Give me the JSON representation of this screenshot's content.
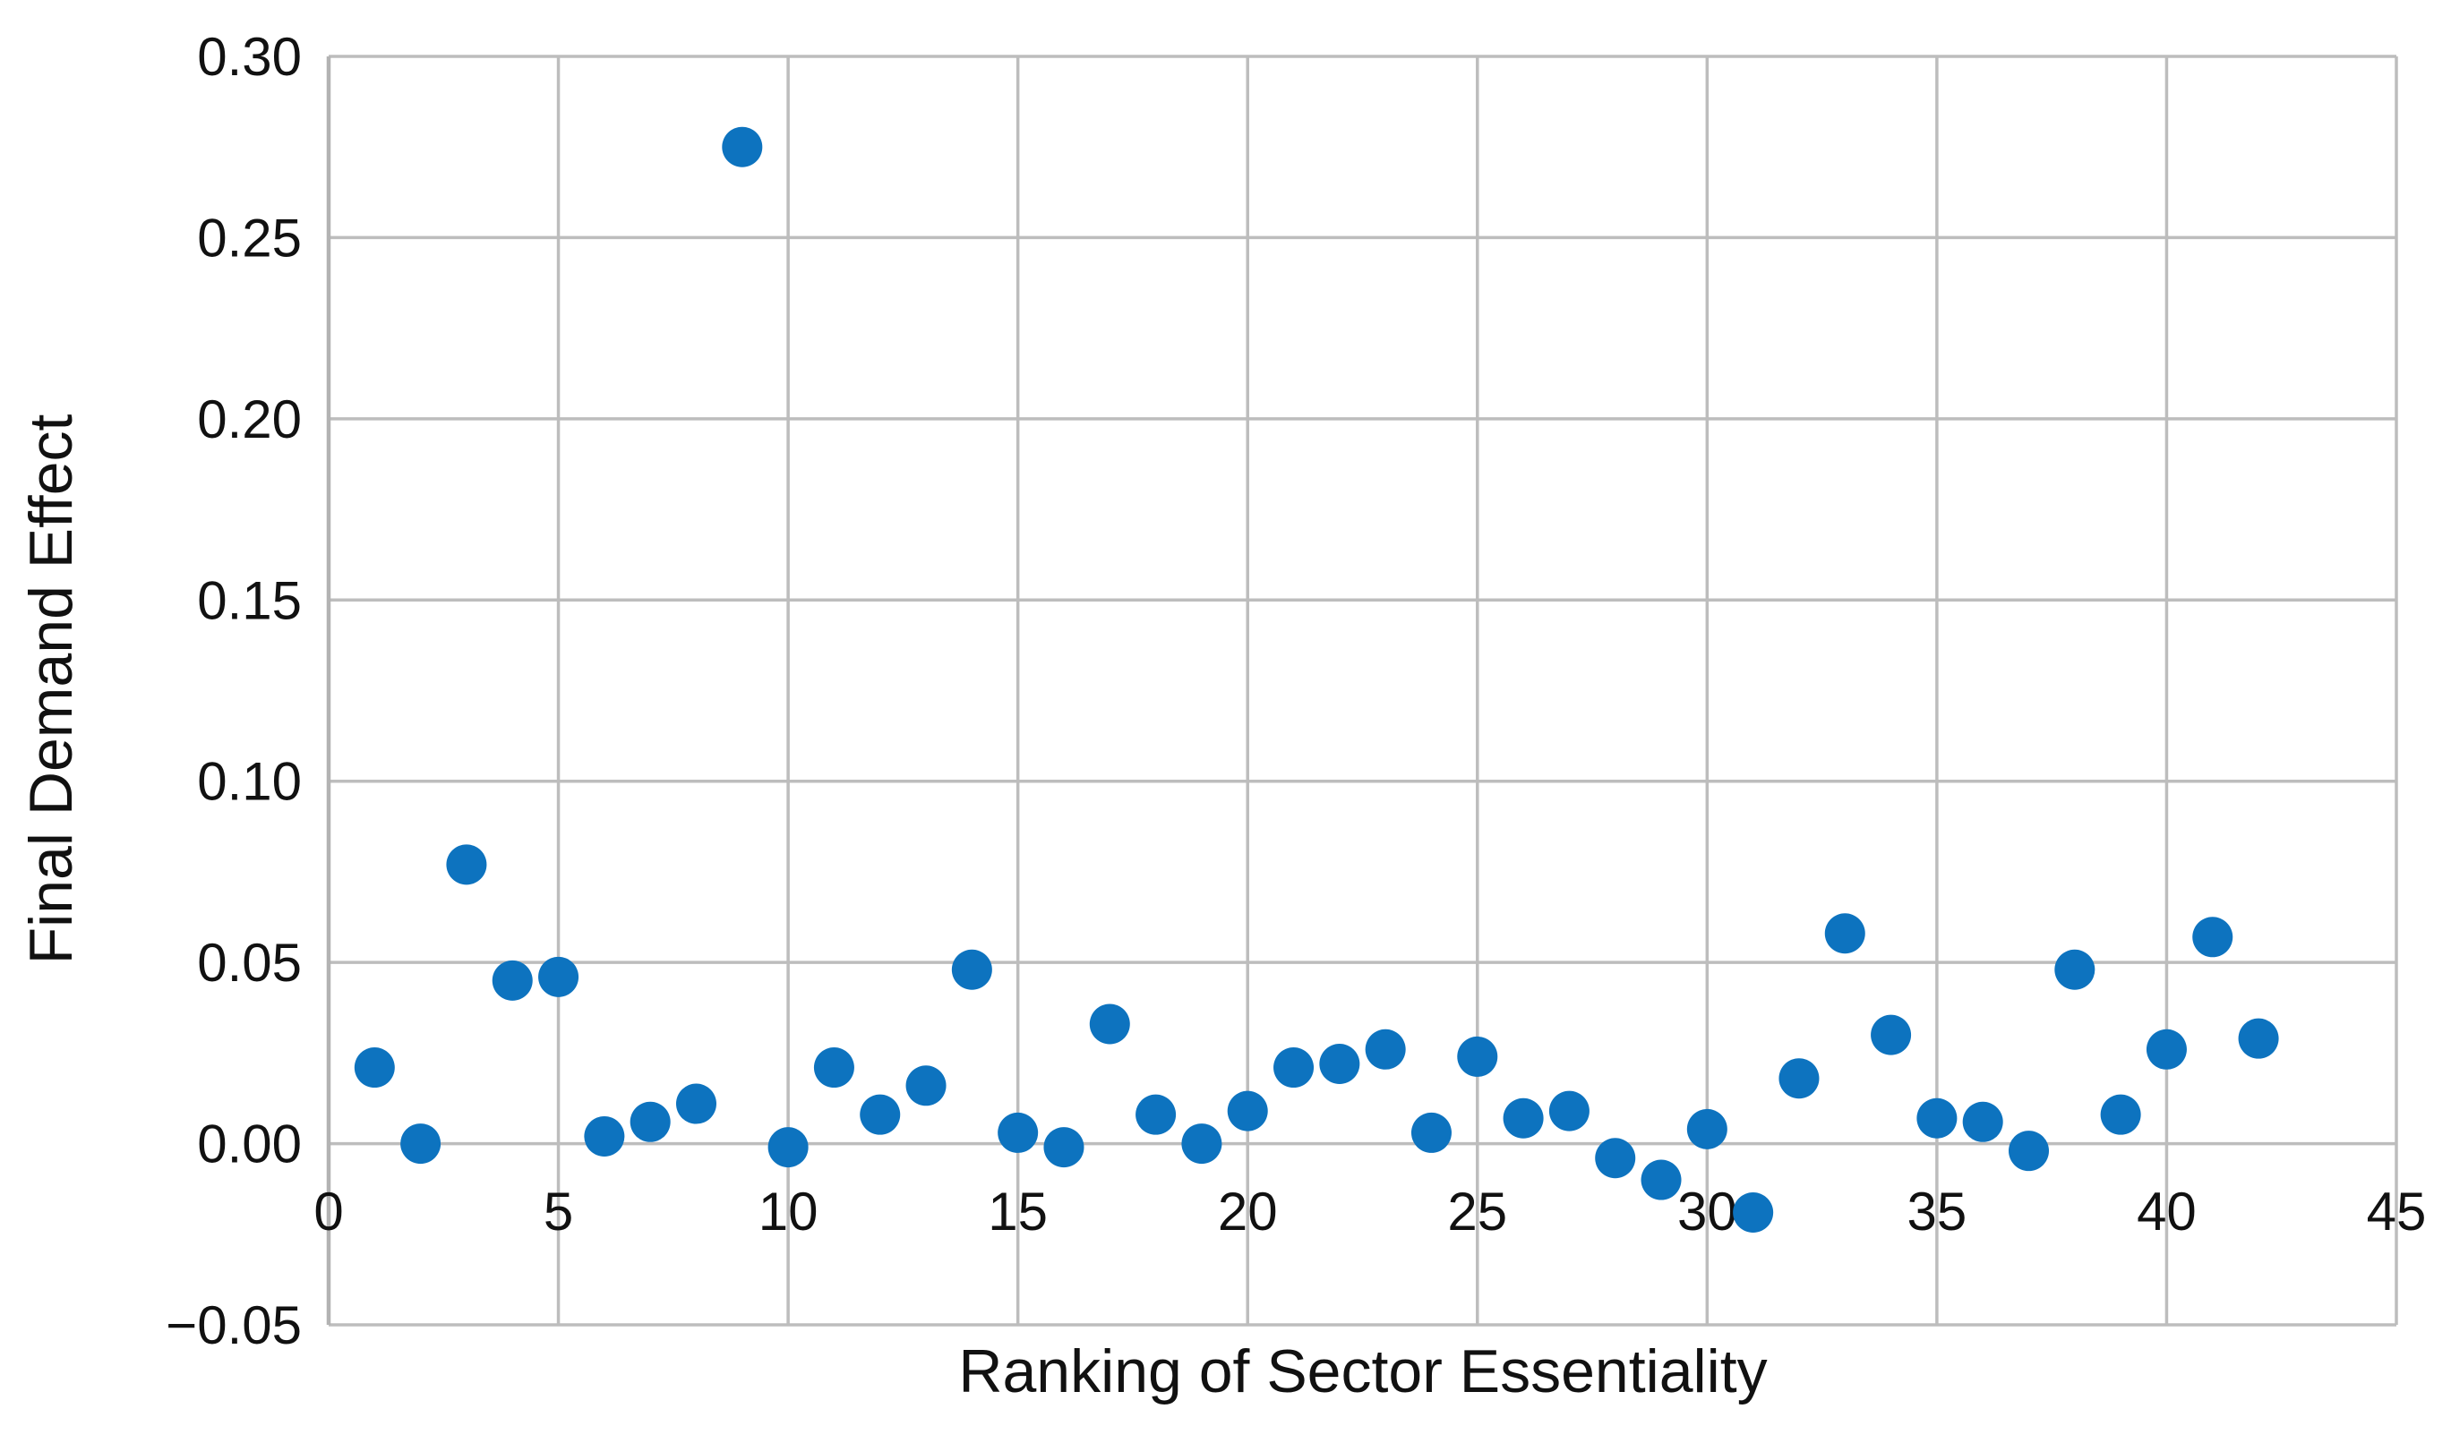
{
  "figure": {
    "background": "#ffffff"
  },
  "chart_data": {
    "type": "scatter",
    "title": "",
    "xlabel": "Ranking of Sector Essentiality",
    "ylabel": "Final Demand Effect",
    "xlim": [
      0,
      45
    ],
    "ylim": [
      -0.05,
      0.3
    ],
    "x_ticks": [
      0,
      5,
      10,
      15,
      20,
      25,
      30,
      35,
      40,
      45
    ],
    "x_tick_labels": [
      "0",
      "5",
      "10",
      "15",
      "20",
      "25",
      "30",
      "35",
      "40",
      "45"
    ],
    "y_ticks": [
      -0.05,
      0.0,
      0.05,
      0.1,
      0.15,
      0.2,
      0.25,
      0.3
    ],
    "y_tick_labels": [
      "−0.05",
      "0.00",
      "0.05",
      "0.10",
      "0.15",
      "0.20",
      "0.25",
      "0.30"
    ],
    "grid": true,
    "legend": null,
    "marker_color": "#0D73BF",
    "grid_color": "#bdbdbd",
    "axis_line_color": "#b3b3b3",
    "text_color": "#111111",
    "marker_radius": 22.5,
    "x": [
      1,
      2,
      3,
      4,
      5,
      6,
      7,
      8,
      9,
      10,
      11,
      12,
      13,
      14,
      15,
      16,
      17,
      18,
      19,
      20,
      21,
      22,
      23,
      24,
      25,
      26,
      27,
      28,
      29,
      30,
      31,
      32,
      33,
      34,
      35,
      36,
      37,
      38,
      39,
      40,
      41,
      42
    ],
    "y": [
      0.021,
      0.0,
      0.077,
      0.045,
      0.046,
      0.002,
      0.006,
      0.011,
      0.275,
      -0.001,
      0.021,
      0.008,
      0.016,
      0.048,
      0.003,
      -0.001,
      0.033,
      0.008,
      0.0,
      0.009,
      0.021,
      0.022,
      0.026,
      0.003,
      0.024,
      0.007,
      0.009,
      -0.004,
      -0.01,
      0.004,
      -0.019,
      0.018,
      0.058,
      0.03,
      0.007,
      0.006,
      -0.002,
      0.048,
      0.008,
      0.026,
      0.057,
      0.029
    ]
  }
}
